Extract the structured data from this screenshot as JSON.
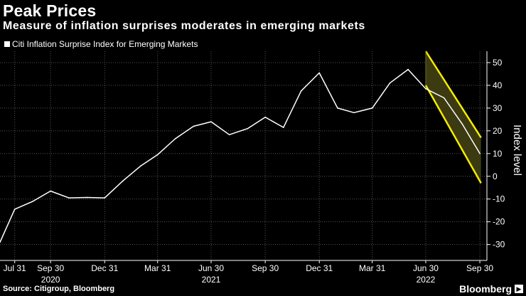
{
  "header": {
    "title": "Peak Prices",
    "subtitle": "Measure of inflation surprises moderates in emerging markets"
  },
  "footer": {
    "source": "Source: Citigroup, Bloomberg",
    "brand": "Bloomberg",
    "brand_icon": "forward-arrow-icon"
  },
  "colors": {
    "background": "#000000",
    "line": "#ffffff",
    "channel_fill": "#3b3a10",
    "channel_edge": "#f5ec00",
    "grid": "#555555",
    "text": "#ffffff"
  },
  "chart_data": {
    "type": "line",
    "title": "Peak Prices",
    "legend": [
      "Citi Inflation Surprise Index for Emerging Markets"
    ],
    "ylabel": "Index level",
    "xlabel": "",
    "ylim": [
      -37,
      55
    ],
    "y_ticks": [
      -30,
      -20,
      -10,
      0,
      10,
      20,
      30,
      40,
      50
    ],
    "x_ticks": [
      "Jul 31",
      "Sep 30",
      "Dec 31",
      "Mar 31",
      "Jun 30",
      "Sep 30",
      "Dec 31",
      "Mar 31",
      "Jun 30",
      "Sep 30"
    ],
    "x_tick_days": [
      0,
      61,
      153,
      243,
      334,
      426,
      518,
      608,
      699,
      791
    ],
    "year_labels": [
      "2020",
      "2021",
      "2022"
    ],
    "year_label_days": [
      61,
      334,
      699
    ],
    "grid": true,
    "series": [
      {
        "name": "Citi Inflation Surprise Index for Emerging Markets",
        "days": [
          -25,
          0,
          31,
          61,
          92,
          123,
          153,
          184,
          214,
          243,
          273,
          304,
          334,
          365,
          396,
          426,
          457,
          487,
          518,
          549,
          577,
          608,
          638,
          669,
          699,
          730,
          761,
          791
        ],
        "values": [
          -29,
          -14.5,
          -11,
          -6.5,
          -9.5,
          -9.3,
          -9.5,
          -2,
          4.5,
          9.5,
          16.5,
          22,
          24,
          18.3,
          21,
          26,
          21.5,
          37.5,
          45.5,
          30,
          28,
          30,
          41,
          47,
          38.5,
          34.5,
          23,
          10
        ]
      }
    ],
    "forecast_channel": {
      "start_day": 699,
      "end_day": 793,
      "upper_start": 55,
      "upper_end": 17,
      "lower_start": 40,
      "lower_end": -3
    }
  }
}
